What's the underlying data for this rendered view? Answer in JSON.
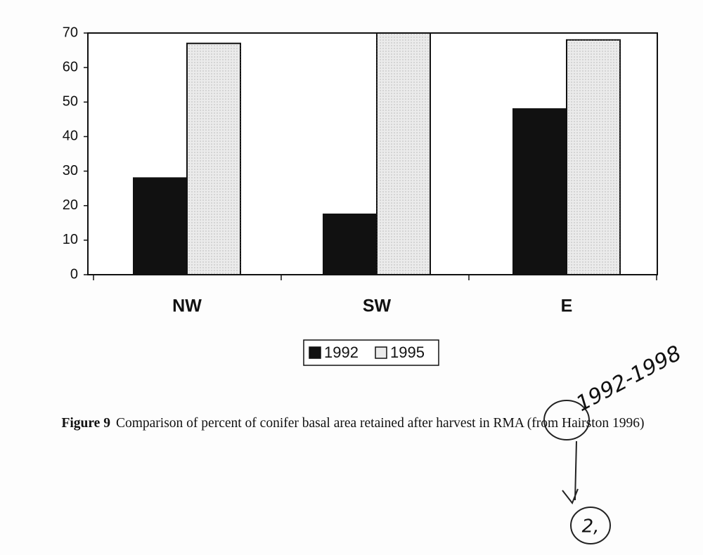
{
  "chart_data": {
    "type": "bar",
    "categories": [
      "NW",
      "SW",
      "E"
    ],
    "series": [
      {
        "name": "1992",
        "color": "#111111",
        "values": [
          28,
          17.5,
          48
        ]
      },
      {
        "name": "1995",
        "color": "#ebebeb",
        "values": [
          67,
          70,
          68
        ]
      }
    ],
    "ylim": [
      0,
      70
    ],
    "yticks": [
      0,
      10,
      20,
      30,
      40,
      50,
      60,
      70
    ],
    "grid": false,
    "legend": "bottom",
    "caption": {
      "label": "Figure 9",
      "text": "Comparison of percent of conifer basal area retained after harvest in RMA (from Hairston 1996)"
    }
  },
  "handwritten_notes": [
    "1992-1998",
    "2,"
  ]
}
